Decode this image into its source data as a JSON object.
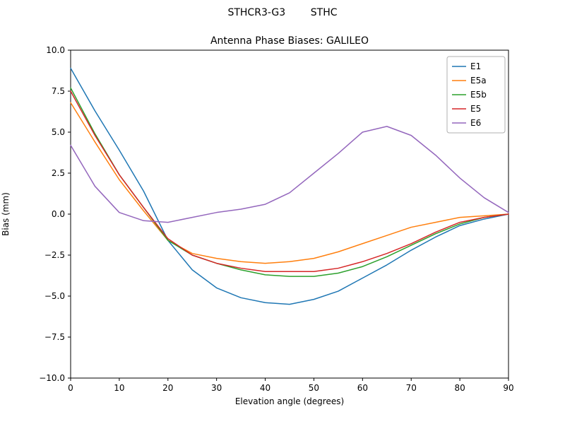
{
  "header": {
    "suptitle": "STHCR3-G3        STHC"
  },
  "chart_data": {
    "type": "line",
    "suptitle": "STHCR3-G3        STHC",
    "title": "Antenna Phase Biases: GALILEO",
    "xlabel": "Elevation angle (degrees)",
    "ylabel": "Bias (mm)",
    "xlim": [
      0,
      90
    ],
    "ylim": [
      -10,
      10
    ],
    "xticks": [
      0,
      10,
      20,
      30,
      40,
      50,
      60,
      70,
      80,
      90
    ],
    "yticks": [
      -10.0,
      -7.5,
      -5.0,
      -2.5,
      0.0,
      2.5,
      5.0,
      7.5,
      10.0
    ],
    "grid": false,
    "legend_position": "upper right",
    "x": [
      0,
      5,
      10,
      15,
      20,
      25,
      30,
      35,
      40,
      45,
      50,
      55,
      60,
      65,
      70,
      75,
      80,
      85,
      90
    ],
    "series": [
      {
        "name": "E1",
        "color": "#1f77b4",
        "values": [
          8.9,
          6.3,
          3.9,
          1.4,
          -1.6,
          -3.4,
          -4.5,
          -5.1,
          -5.4,
          -5.5,
          -5.2,
          -4.7,
          -3.9,
          -3.1,
          -2.2,
          -1.4,
          -0.7,
          -0.3,
          0.0
        ]
      },
      {
        "name": "E5a",
        "color": "#ff7f0e",
        "values": [
          6.8,
          4.4,
          2.1,
          0.2,
          -1.6,
          -2.4,
          -2.7,
          -2.9,
          -3.0,
          -2.9,
          -2.7,
          -2.3,
          -1.8,
          -1.3,
          -0.8,
          -0.5,
          -0.2,
          -0.1,
          0.0
        ]
      },
      {
        "name": "E5b",
        "color": "#2ca02c",
        "values": [
          7.7,
          4.9,
          2.4,
          0.4,
          -1.6,
          -2.5,
          -3.0,
          -3.4,
          -3.7,
          -3.8,
          -3.8,
          -3.6,
          -3.2,
          -2.6,
          -1.9,
          -1.2,
          -0.6,
          -0.2,
          0.0
        ]
      },
      {
        "name": "E5",
        "color": "#d62728",
        "values": [
          7.5,
          4.8,
          2.4,
          0.4,
          -1.5,
          -2.5,
          -3.0,
          -3.3,
          -3.5,
          -3.5,
          -3.5,
          -3.3,
          -2.9,
          -2.4,
          -1.8,
          -1.1,
          -0.5,
          -0.2,
          0.0
        ]
      },
      {
        "name": "E6",
        "color": "#9467bd",
        "values": [
          4.2,
          1.7,
          0.1,
          -0.4,
          -0.5,
          -0.2,
          0.1,
          0.3,
          0.6,
          1.3,
          2.5,
          3.7,
          5.0,
          5.35,
          4.8,
          3.6,
          2.2,
          1.0,
          0.1
        ]
      }
    ]
  }
}
